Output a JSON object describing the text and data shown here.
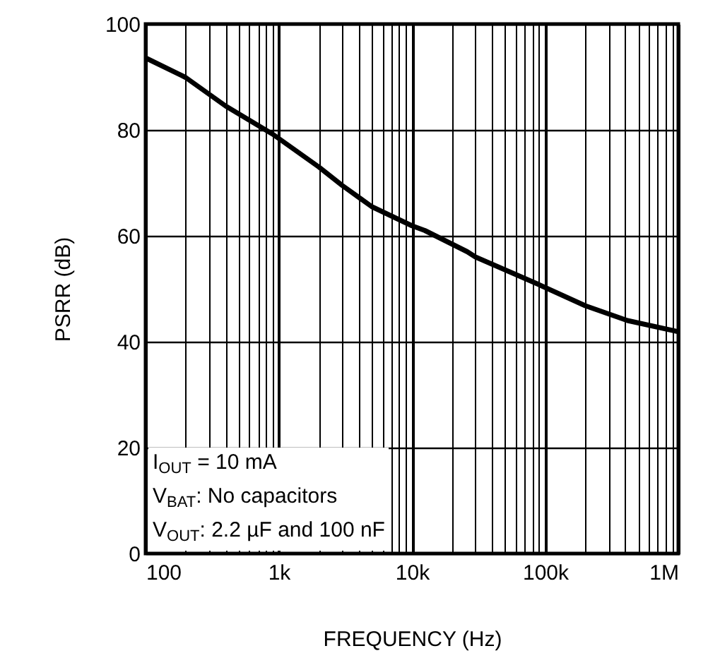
{
  "chart_data": {
    "type": "line",
    "xlabel": "FREQUENCY (Hz)",
    "ylabel": "PSRR (dB)",
    "annotations": [
      "I$_{OUT}$ = 10 mA",
      "V$_{BAT}$: No capacitors",
      "V$_{OUT}$: 2.2 µF and 100 nF"
    ],
    "x": [
      100,
      200,
      400,
      900,
      2000,
      3000,
      5000,
      10000,
      12500,
      26000,
      30000,
      86000,
      200000,
      415000,
      1000000
    ],
    "series": [
      {
        "color": "#000000",
        "values": [
          93.6,
          89.9,
          84.5,
          79.2,
          73,
          69.5,
          65.5,
          61.9,
          61,
          57,
          56,
          51,
          46.8,
          44,
          41.9
        ]
      }
    ],
    "log": "x",
    "grid": true,
    "line_style": "solid",
    "marker": "none",
    "xlim": [
      100,
      1000000
    ],
    "ylim": [
      0,
      100
    ],
    "yticks": [
      0,
      20,
      40,
      60,
      80,
      100
    ],
    "xticks": [
      {
        "value": 100,
        "label": "100"
      },
      {
        "value": 200,
        "label": null
      },
      {
        "value": 300,
        "label": null
      },
      {
        "value": 400,
        "label": null
      },
      {
        "value": 500,
        "label": null
      },
      {
        "value": 600,
        "label": null
      },
      {
        "value": 700,
        "label": null
      },
      {
        "value": 800,
        "label": null
      },
      {
        "value": 900,
        "label": null
      },
      {
        "value": 1000,
        "label": "1k"
      },
      {
        "value": 2000,
        "label": null
      },
      {
        "value": 3000,
        "label": null
      },
      {
        "value": 4000,
        "label": null
      },
      {
        "value": 5000,
        "label": null
      },
      {
        "value": 6000,
        "label": null
      },
      {
        "value": 7000,
        "label": null
      },
      {
        "value": 8000,
        "label": null
      },
      {
        "value": 9000,
        "label": null
      },
      {
        "value": 10000,
        "label": "10k"
      },
      {
        "value": 20000,
        "label": null
      },
      {
        "value": 30000,
        "label": null
      },
      {
        "value": 40000,
        "label": null
      },
      {
        "value": 50000,
        "label": null
      },
      {
        "value": 60000,
        "label": null
      },
      {
        "value": 70000,
        "label": null
      },
      {
        "value": 80000,
        "label": null
      },
      {
        "value": 90000,
        "label": null
      },
      {
        "value": 100000,
        "label": "100k"
      },
      {
        "value": 200000,
        "label": null
      },
      {
        "value": 300000,
        "label": null
      },
      {
        "value": 400000,
        "label": null
      },
      {
        "value": 500000,
        "label": null
      },
      {
        "value": 600000,
        "label": null
      },
      {
        "value": 700000,
        "label": null
      },
      {
        "value": 800000,
        "label": null
      },
      {
        "value": 900000,
        "label": null
      },
      {
        "value": 1000000,
        "label": "1M"
      }
    ]
  }
}
